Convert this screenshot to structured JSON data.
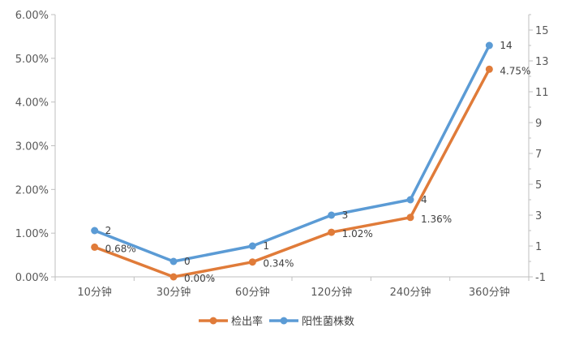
{
  "chart_data": {
    "type": "line",
    "categories": [
      "10分钟",
      "30分钟",
      "60分钟",
      "120分钟",
      "240分钟",
      "360分钟"
    ],
    "series": [
      {
        "name": "检出率",
        "axis": "left",
        "color": "#E07B39",
        "values": [
          0.68,
          0.0,
          0.34,
          1.02,
          1.36,
          4.75
        ],
        "labels": [
          "0.68%",
          "0.00%",
          "0.34%",
          "1.02%",
          "1.36%",
          "4.75%"
        ]
      },
      {
        "name": "阳性菌株数",
        "axis": "right",
        "color": "#5B9BD5",
        "values": [
          2,
          0,
          1,
          3,
          4,
          14
        ],
        "labels": [
          "2",
          "0",
          "1",
          "3",
          "4",
          "14"
        ]
      }
    ],
    "y_left": {
      "min": 0,
      "max": 6,
      "ticks": [
        "0.00%",
        "1.00%",
        "2.00%",
        "3.00%",
        "4.00%",
        "5.00%",
        "6.00%"
      ]
    },
    "y_right": {
      "min": -1,
      "max": 16,
      "ticks": [
        "-1",
        "1",
        "3",
        "5",
        "7",
        "9",
        "11",
        "13",
        "15"
      ]
    },
    "grid": false,
    "legend": "bottom"
  }
}
